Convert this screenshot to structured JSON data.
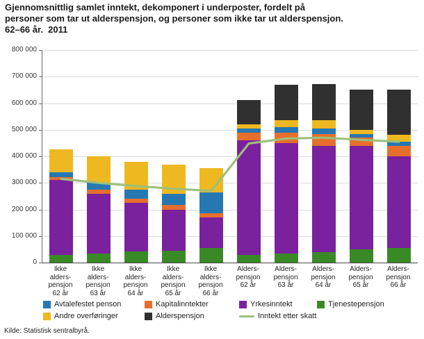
{
  "title": {
    "line1": "Gjennomsnittlig samlet inntekt, dekomponert i underposter, fordelt på",
    "line2": "personer som tar ut alderspensjon, og personer som ikke tar ut alderspensjon.",
    "line3": "62–66 år.  2011"
  },
  "source": "Kilde: Statistisk sentralbyrå.",
  "chart_data": {
    "type": "bar",
    "stacked": true,
    "title": "Gjennomsnittlig samlet inntekt, dekomponert i underposter, fordelt på personer som tar ut alderspensjon, og personer som ikke tar ut alderspensjon. 62–66 år. 2011",
    "xlabel": "",
    "ylabel": "",
    "ylim": [
      0,
      800000
    ],
    "ytick_step": 100000,
    "ytick_labels": [
      "0",
      "100 000",
      "200 000",
      "300 000",
      "400 000",
      "500 000",
      "600 000",
      "700 000",
      "800 000"
    ],
    "grid": true,
    "legend_position": "bottom",
    "categories": [
      [
        "Ikke",
        "alders-",
        "pensjon",
        "62 år"
      ],
      [
        "Ikke",
        "alders-",
        "pensjon",
        "63 år"
      ],
      [
        "Ikke",
        "alders-",
        "pensjon",
        "64 år"
      ],
      [
        "Ikke",
        "alders-",
        "pensjon",
        "65 år"
      ],
      [
        "Ikke",
        "alders-",
        "pensjon",
        "66 år"
      ],
      [
        "Alders-",
        "pensjon",
        "62 år"
      ],
      [
        "Alders-",
        "pensjon",
        "63 år"
      ],
      [
        "Alders-",
        "pensjon",
        "64 år"
      ],
      [
        "Alders-",
        "pensjon",
        "65 år"
      ],
      [
        "Alders-",
        "pensjon",
        "66 år"
      ]
    ],
    "series": [
      {
        "key": "tjenestepensjon",
        "name": "Tjenestepensjon",
        "color": "#398a27",
        "values": [
          30000,
          35000,
          42000,
          45000,
          55000,
          28000,
          35000,
          40000,
          50000,
          55000
        ]
      },
      {
        "key": "yrkesinntekt",
        "name": "Yrkesinntekt",
        "color": "#7a219e",
        "values": [
          280000,
          225000,
          183000,
          155000,
          115000,
          432000,
          415000,
          400000,
          390000,
          345000
        ]
      },
      {
        "key": "kapitalinntekter",
        "name": "Kapitalinntekter",
        "color": "#e66f2e",
        "values": [
          12000,
          15000,
          15000,
          18000,
          15000,
          30000,
          40000,
          45000,
          30000,
          40000
        ]
      },
      {
        "key": "avtalefestet",
        "name": "Avtalefestet penson",
        "color": "#2678b2",
        "values": [
          18000,
          25000,
          35000,
          42000,
          80000,
          15000,
          20000,
          20000,
          15000,
          15000
        ]
      },
      {
        "key": "andre_overforinger",
        "name": "Andre overføringer",
        "color": "#eeb820",
        "values": [
          85000,
          100000,
          105000,
          110000,
          90000,
          15000,
          25000,
          30000,
          15000,
          25000
        ]
      },
      {
        "key": "alderspensjon",
        "name": "Alderspensjon",
        "color": "#303030",
        "values": [
          0,
          0,
          0,
          0,
          0,
          92000,
          135000,
          137000,
          150000,
          170000
        ]
      }
    ],
    "line_series": {
      "key": "inntekt_etter_skatt",
      "name": "Inntekt etter skatt",
      "color": "#9cc07a",
      "values": [
        315000,
        300000,
        288000,
        278000,
        270000,
        448000,
        467000,
        470000,
        462000,
        455000
      ]
    },
    "legend_order": [
      "avtalefestet",
      "kapitalinntekter",
      "yrkesinntekt",
      "tjenestepensjon",
      "andre_overforinger",
      "alderspensjon",
      "inntekt_etter_skatt"
    ]
  }
}
